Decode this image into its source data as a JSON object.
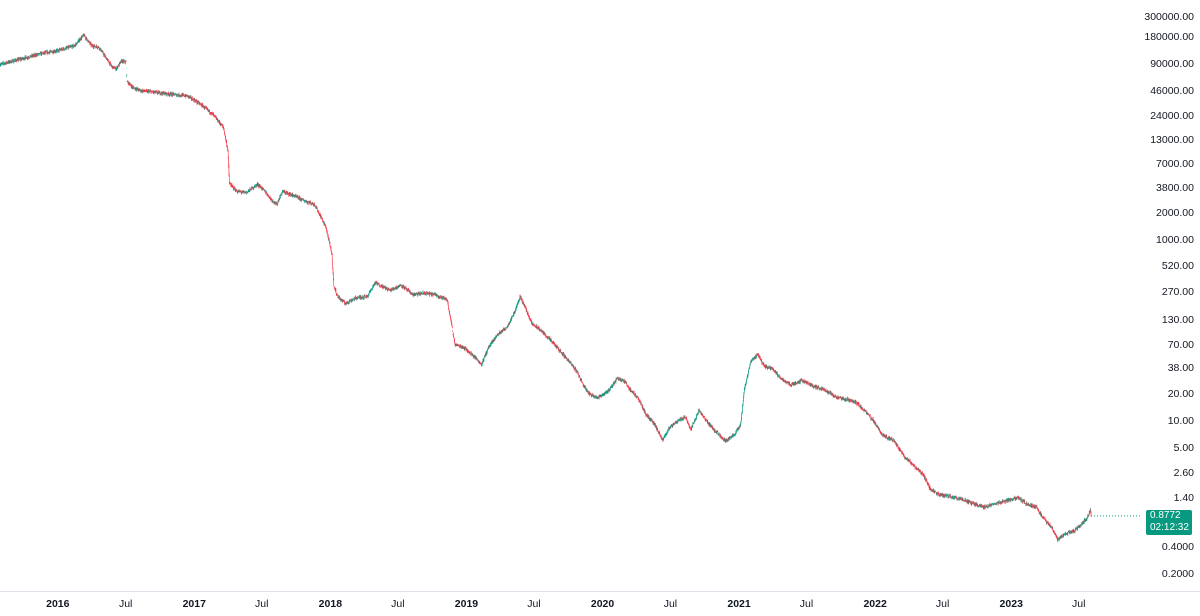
{
  "chart_data": {
    "type": "candlestick",
    "y_scale": "log",
    "ylim": [
      0.15,
      400000
    ],
    "grid": false,
    "colors": {
      "up": "#089981",
      "down": "#f23645",
      "badge": "#089981"
    },
    "y_ticks": [
      "300000.00",
      "180000.00",
      "90000.00",
      "46000.00",
      "24000.00",
      "13000.00",
      "7000.00",
      "3800.00",
      "2000.00",
      "1000.00",
      "520.00",
      "270.00",
      "130.00",
      "70.00",
      "38.00",
      "20.00",
      "10.00",
      "5.00",
      "2.60",
      "1.40",
      "0.4000",
      "0.2000"
    ],
    "x_ticks": [
      {
        "date": "2016-01-01",
        "label": "2016",
        "year": true
      },
      {
        "date": "2016-07-01",
        "label": "Jul",
        "year": false
      },
      {
        "date": "2017-01-01",
        "label": "2017",
        "year": true
      },
      {
        "date": "2017-07-01",
        "label": "Jul",
        "year": false
      },
      {
        "date": "2018-01-01",
        "label": "2018",
        "year": true
      },
      {
        "date": "2018-07-01",
        "label": "Jul",
        "year": false
      },
      {
        "date": "2019-01-01",
        "label": "2019",
        "year": true
      },
      {
        "date": "2019-07-01",
        "label": "Jul",
        "year": false
      },
      {
        "date": "2020-01-01",
        "label": "2020",
        "year": true
      },
      {
        "date": "2020-07-01",
        "label": "Jul",
        "year": false
      },
      {
        "date": "2021-01-01",
        "label": "2021",
        "year": true
      },
      {
        "date": "2021-07-01",
        "label": "Jul",
        "year": false
      },
      {
        "date": "2022-01-01",
        "label": "2022",
        "year": true
      },
      {
        "date": "2022-07-01",
        "label": "Jul",
        "year": false
      },
      {
        "date": "2023-01-01",
        "label": "2023",
        "year": true
      },
      {
        "date": "2023-07-01",
        "label": "Jul",
        "year": false
      }
    ],
    "xlim": [
      "2015-07-30",
      "2023-12-15"
    ],
    "price_path": [
      [
        "2015-07-30",
        90000
      ],
      [
        "2015-08-20",
        95000
      ],
      [
        "2015-10-01",
        105000
      ],
      [
        "2015-11-15",
        118000
      ],
      [
        "2016-01-01",
        128000
      ],
      [
        "2016-02-15",
        145000
      ],
      [
        "2016-03-10",
        190000
      ],
      [
        "2016-04-01",
        145000
      ],
      [
        "2016-04-20",
        140000
      ],
      [
        "2016-05-10",
        105000
      ],
      [
        "2016-05-25",
        85000
      ],
      [
        "2016-06-05",
        80000
      ],
      [
        "2016-06-20",
        98000
      ],
      [
        "2016-07-02",
        95000
      ],
      [
        "2016-07-05",
        58000
      ],
      [
        "2016-07-20",
        50000
      ],
      [
        "2016-08-10",
        46000
      ],
      [
        "2016-09-20",
        44000
      ],
      [
        "2016-11-01",
        42000
      ],
      [
        "2016-12-15",
        40000
      ],
      [
        "2017-01-20",
        32000
      ],
      [
        "2017-02-20",
        25000
      ],
      [
        "2017-03-20",
        18000
      ],
      [
        "2017-04-01",
        10000
      ],
      [
        "2017-04-05",
        4300
      ],
      [
        "2017-04-25",
        3500
      ],
      [
        "2017-05-20",
        3400
      ],
      [
        "2017-06-20",
        4200
      ],
      [
        "2017-07-10",
        3500
      ],
      [
        "2017-07-25",
        2900
      ],
      [
        "2017-08-10",
        2500
      ],
      [
        "2017-08-25",
        3500
      ],
      [
        "2017-09-20",
        3200
      ],
      [
        "2017-10-20",
        2800
      ],
      [
        "2017-11-20",
        2500
      ],
      [
        "2017-12-20",
        1400
      ],
      [
        "2018-01-05",
        700
      ],
      [
        "2018-01-10",
        320
      ],
      [
        "2018-01-20",
        240
      ],
      [
        "2018-02-10",
        200
      ],
      [
        "2018-03-10",
        230
      ],
      [
        "2018-04-10",
        240
      ],
      [
        "2018-05-01",
        340
      ],
      [
        "2018-06-10",
        280
      ],
      [
        "2018-07-10",
        320
      ],
      [
        "2018-08-10",
        250
      ],
      [
        "2018-09-10",
        260
      ],
      [
        "2018-10-10",
        250
      ],
      [
        "2018-11-10",
        220
      ],
      [
        "2018-11-20",
        130
      ],
      [
        "2018-12-01",
        70
      ],
      [
        "2018-12-25",
        65
      ],
      [
        "2019-01-25",
        50
      ],
      [
        "2019-02-10",
        42
      ],
      [
        "2019-03-01",
        65
      ],
      [
        "2019-03-25",
        90
      ],
      [
        "2019-04-20",
        110
      ],
      [
        "2019-05-10",
        160
      ],
      [
        "2019-05-25",
        240
      ],
      [
        "2019-06-10",
        170
      ],
      [
        "2019-06-25",
        120
      ],
      [
        "2019-07-20",
        100
      ],
      [
        "2019-08-25",
        70
      ],
      [
        "2019-09-25",
        50
      ],
      [
        "2019-10-25",
        35
      ],
      [
        "2019-11-10",
        25
      ],
      [
        "2019-11-25",
        20
      ],
      [
        "2019-12-20",
        18
      ],
      [
        "2020-01-20",
        22
      ],
      [
        "2020-02-10",
        30
      ],
      [
        "2020-03-01",
        27
      ],
      [
        "2020-03-15",
        22
      ],
      [
        "2020-04-05",
        18
      ],
      [
        "2020-04-25",
        12
      ],
      [
        "2020-05-20",
        9
      ],
      [
        "2020-06-10",
        6
      ],
      [
        "2020-06-25",
        8
      ],
      [
        "2020-07-20",
        10
      ],
      [
        "2020-08-10",
        11
      ],
      [
        "2020-08-25",
        8
      ],
      [
        "2020-09-15",
        13
      ],
      [
        "2020-10-05",
        10
      ],
      [
        "2020-10-25",
        8
      ],
      [
        "2020-11-25",
        6
      ],
      [
        "2020-12-20",
        7
      ],
      [
        "2021-01-05",
        9
      ],
      [
        "2021-01-15",
        22
      ],
      [
        "2021-02-01",
        45
      ],
      [
        "2021-02-20",
        55
      ],
      [
        "2021-03-10",
        40
      ],
      [
        "2021-04-01",
        38
      ],
      [
        "2021-04-20",
        30
      ],
      [
        "2021-05-20",
        25
      ],
      [
        "2021-06-20",
        28
      ],
      [
        "2021-07-20",
        24
      ],
      [
        "2021-08-20",
        22
      ],
      [
        "2021-09-20",
        18
      ],
      [
        "2021-10-20",
        17
      ],
      [
        "2021-11-10",
        16
      ],
      [
        "2021-11-25",
        14
      ],
      [
        "2021-12-10",
        12
      ],
      [
        "2021-12-28",
        10
      ],
      [
        "2022-01-20",
        7
      ],
      [
        "2022-02-20",
        6
      ],
      [
        "2022-03-20",
        4
      ],
      [
        "2022-04-20",
        3
      ],
      [
        "2022-05-10",
        2.5
      ],
      [
        "2022-05-30",
        1.7
      ],
      [
        "2022-06-25",
        1.5
      ],
      [
        "2022-07-20",
        1.45
      ],
      [
        "2022-08-20",
        1.35
      ],
      [
        "2022-09-20",
        1.2
      ],
      [
        "2022-10-20",
        1.1
      ],
      [
        "2022-11-20",
        1.2
      ],
      [
        "2022-12-20",
        1.3
      ],
      [
        "2023-01-20",
        1.4
      ],
      [
        "2023-02-10",
        1.2
      ],
      [
        "2023-03-10",
        1.1
      ],
      [
        "2023-03-25",
        0.85
      ],
      [
        "2023-04-20",
        0.65
      ],
      [
        "2023-05-05",
        0.48
      ],
      [
        "2023-05-25",
        0.55
      ],
      [
        "2023-06-20",
        0.6
      ],
      [
        "2023-07-10",
        0.72
      ],
      [
        "2023-07-25",
        0.85
      ],
      [
        "2023-08-01",
        1.05
      ],
      [
        "2023-08-03",
        0.8772
      ]
    ],
    "price_gaps": [
      "2016-07-04",
      "2018-01-12",
      "2018-11-25",
      "2020-04-10",
      "2021-12-20"
    ],
    "last_price": "0.8772",
    "last_price_value": 0.8772,
    "countdown": "02:12:32"
  }
}
